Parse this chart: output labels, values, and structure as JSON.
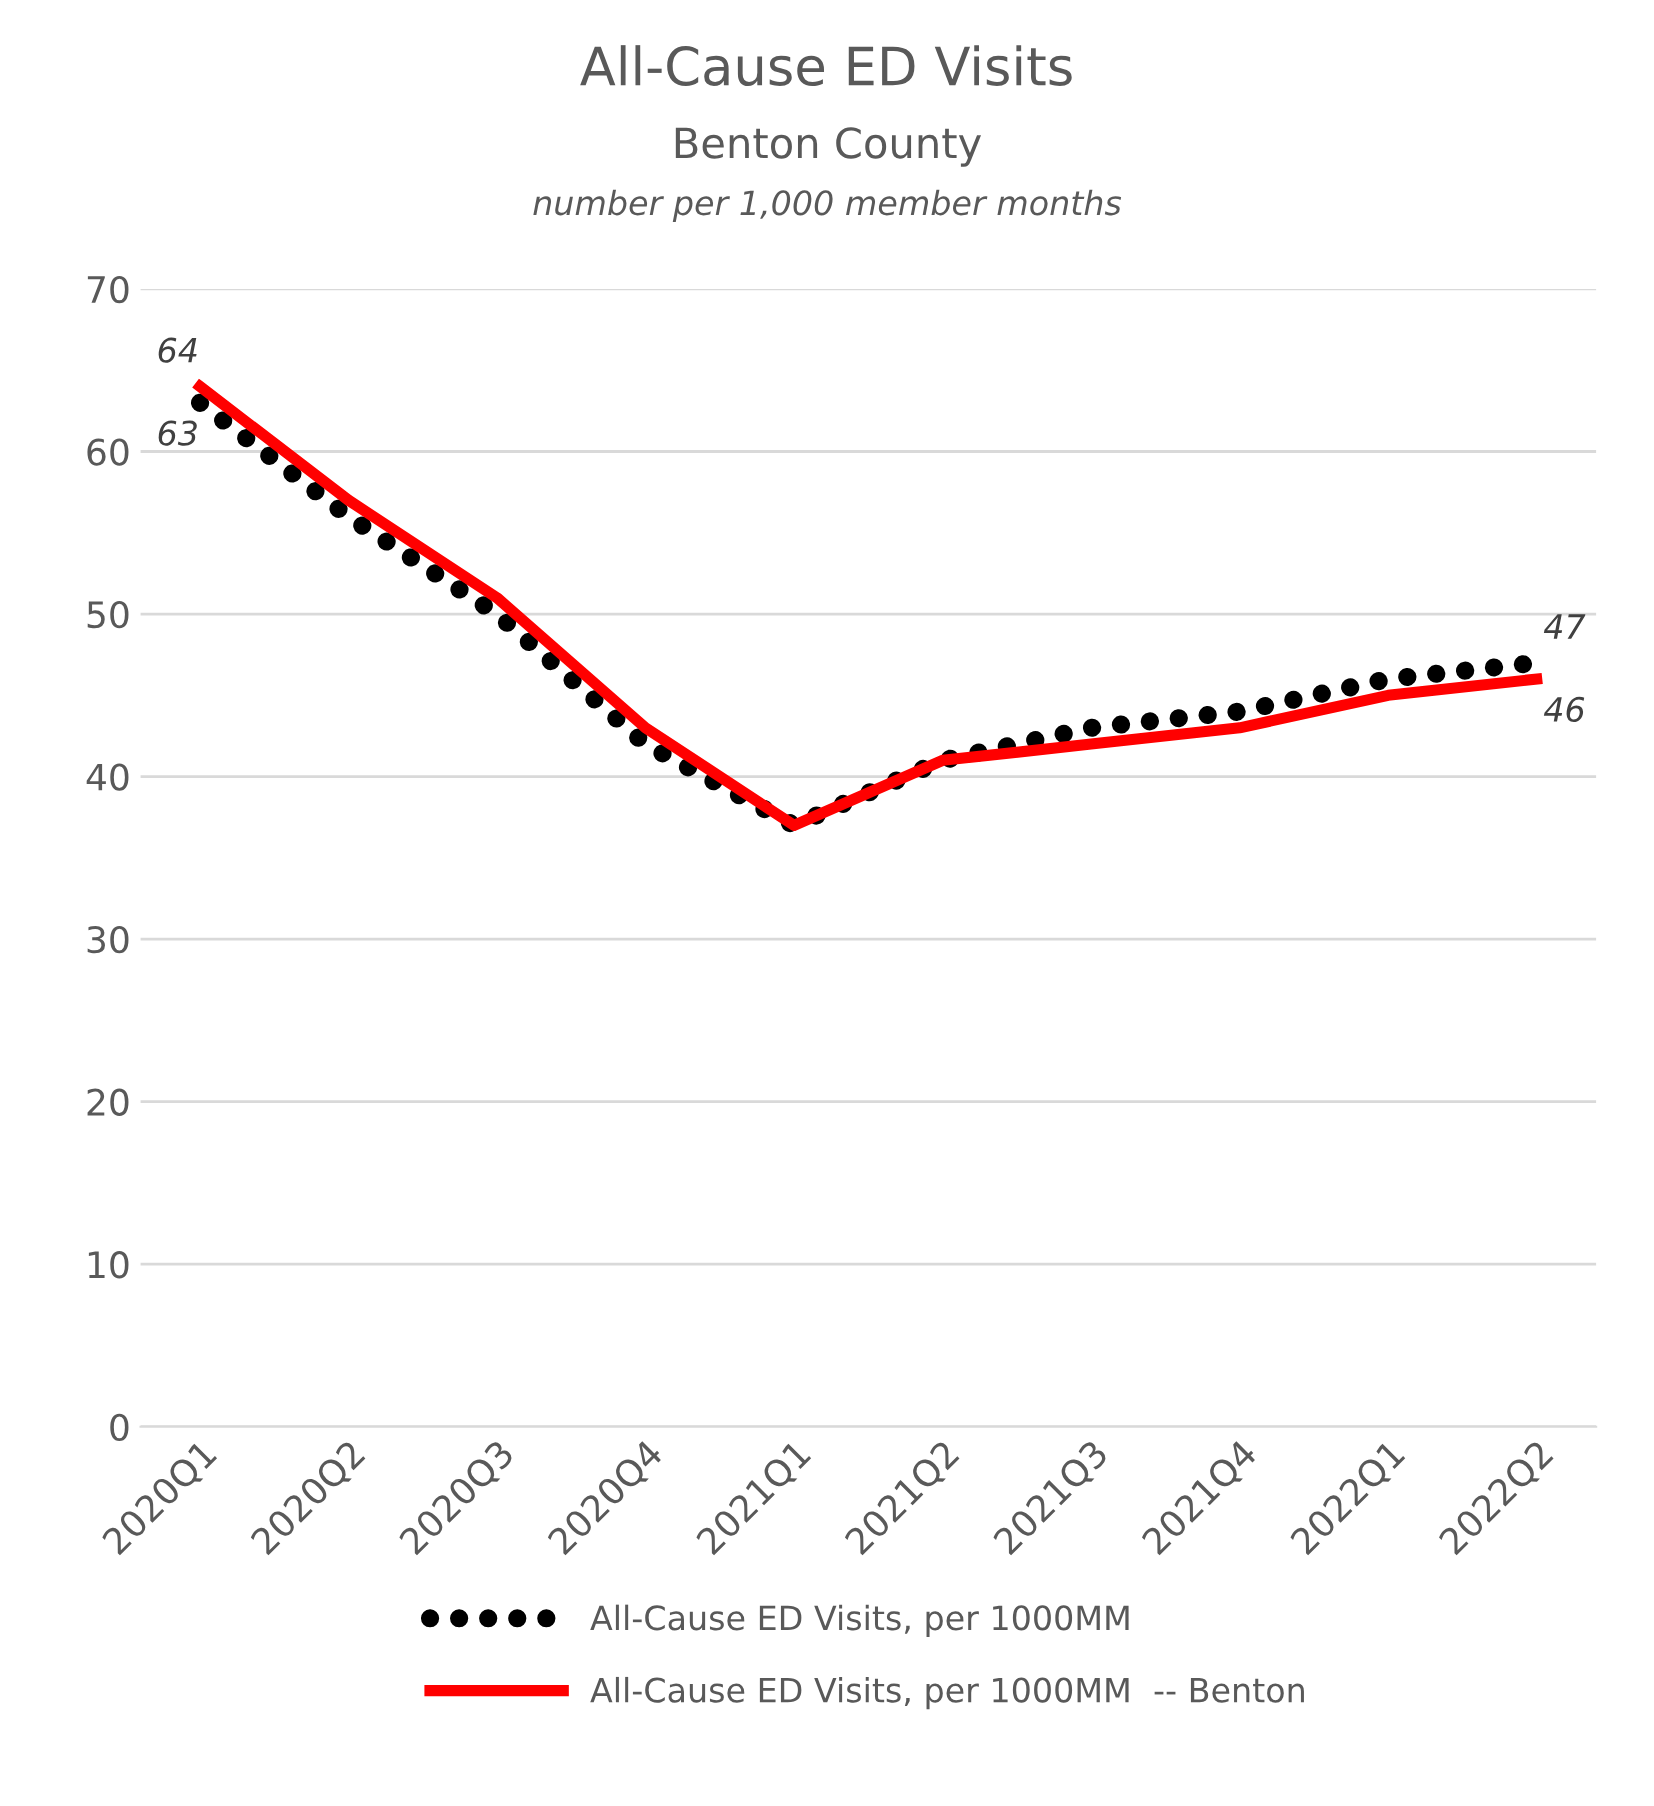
{
  "chart_data": {
    "type": "line",
    "title": "All-Cause ED Visits",
    "subtitle": "Benton County",
    "annotations": [
      "number per 1,000 member months"
    ],
    "categories": [
      "2020Q1",
      "2020Q2",
      "2020Q3",
      "2020Q4",
      "2021Q1",
      "2021Q2",
      "2021Q3",
      "2021Q4",
      "2022Q1",
      "2022Q2"
    ],
    "series": [
      {
        "name": "All-Cause ED Visits, per 1000MM",
        "color": "#000000",
        "line_style": "dotted",
        "values": [
          63,
          56,
          50,
          42,
          37,
          41,
          43,
          44,
          46,
          47
        ],
        "value_labels": [
          "63",
          null,
          null,
          null,
          null,
          null,
          null,
          null,
          null,
          "47"
        ]
      },
      {
        "name": "All-Cause ED Visits, per 1000MM  -- Benton",
        "color": "#ff0000",
        "line_style": "solid",
        "values": [
          64,
          57,
          51,
          43,
          37,
          41,
          42,
          43,
          45,
          46
        ],
        "value_labels": [
          "64",
          null,
          null,
          null,
          null,
          null,
          null,
          null,
          null,
          "46"
        ]
      }
    ],
    "ylim": [
      0,
      70
    ],
    "yticks": [
      0,
      10,
      20,
      30,
      40,
      50,
      60,
      70
    ],
    "grid": "y",
    "legend": "bottom",
    "marker": "none"
  }
}
